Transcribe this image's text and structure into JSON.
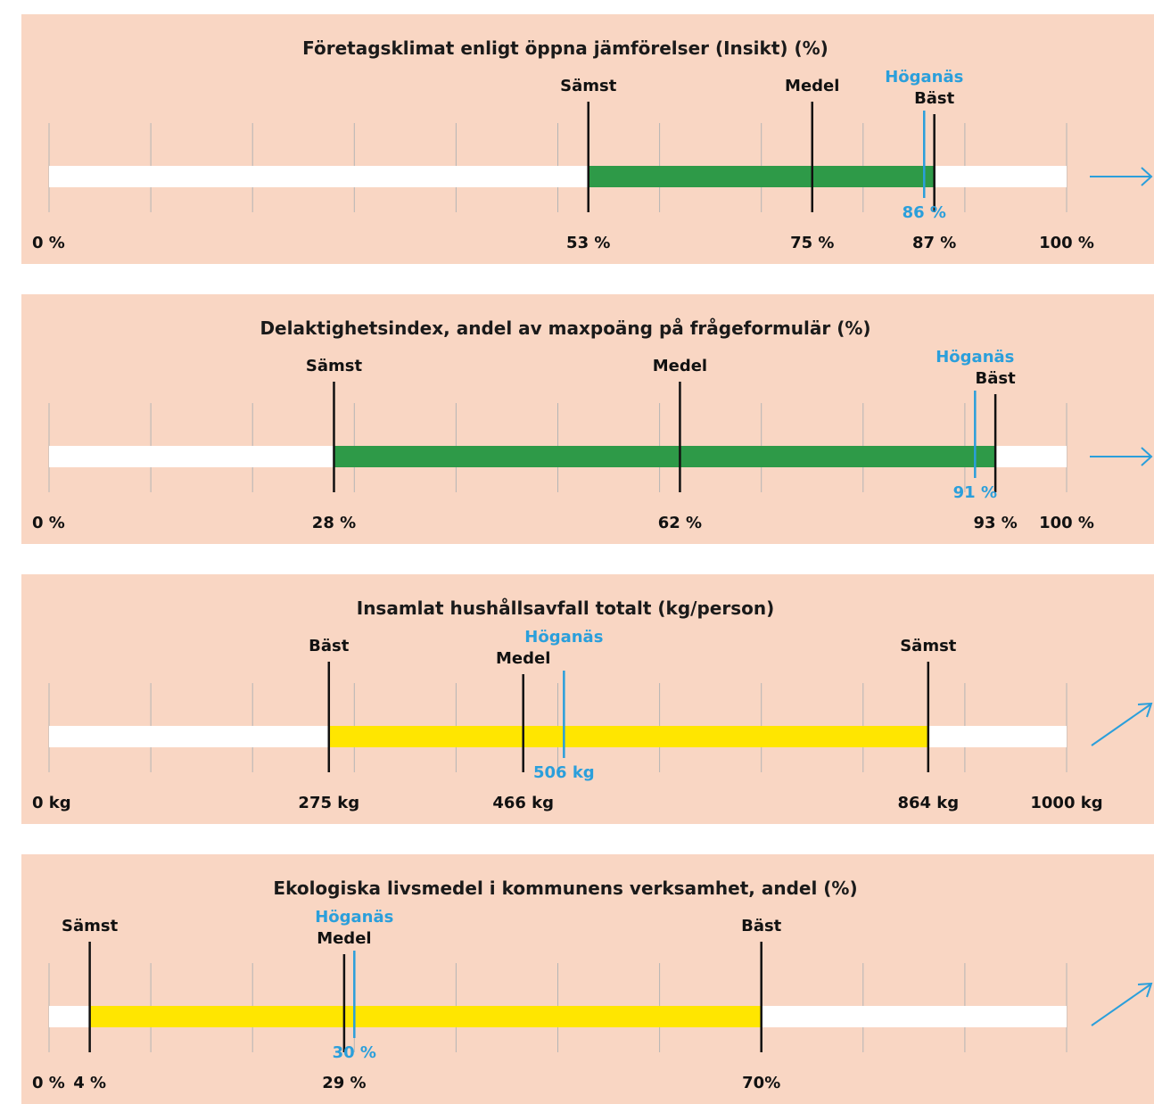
{
  "colors": {
    "panel_bg": "#f9d6c3",
    "track": "#ffffff",
    "green": "#2e9a48",
    "yellow": "#ffe600",
    "highlight": "#2b9fdb",
    "marker": "#111111",
    "gridline": "#b5b5b5"
  },
  "chart_data": [
    {
      "type": "range-bar",
      "title": "Företagsklimat enligt öppna jämförelser (Insikt) (%)",
      "xlim": [
        0,
        100
      ],
      "axis_labels": [
        "0 %",
        "100 %"
      ],
      "bar_color": "green",
      "trend": "right-arrow",
      "markers": [
        {
          "name": "Sämst",
          "value": 53,
          "label": "53 %"
        },
        {
          "name": "Medel",
          "value": 75,
          "label": "75 %"
        },
        {
          "name": "Bäst",
          "value": 87,
          "label": "87 %"
        }
      ],
      "highlight": {
        "name": "Höganäs",
        "value": 86,
        "label": "86 %"
      }
    },
    {
      "type": "range-bar",
      "title": "Delaktighetsindex, andel av maxpoäng på frågeformulär (%)",
      "xlim": [
        0,
        100
      ],
      "axis_labels": [
        "0 %",
        "100 %"
      ],
      "bar_color": "green",
      "trend": "right-arrow",
      "markers": [
        {
          "name": "Sämst",
          "value": 28,
          "label": "28 %"
        },
        {
          "name": "Medel",
          "value": 62,
          "label": "62 %"
        },
        {
          "name": "Bäst",
          "value": 93,
          "label": "93 %"
        }
      ],
      "highlight": {
        "name": "Höganäs",
        "value": 91,
        "label": "91 %"
      }
    },
    {
      "type": "range-bar",
      "title": "Insamlat hushållsavfall totalt (kg/person)",
      "xlim": [
        0,
        1000
      ],
      "axis_labels": [
        "0 kg",
        "1000 kg"
      ],
      "bar_color": "yellow",
      "trend": "up-right-arrow",
      "markers": [
        {
          "name": "Bäst",
          "value": 275,
          "label": "275 kg"
        },
        {
          "name": "Medel",
          "value": 466,
          "label": "466 kg"
        },
        {
          "name": "Sämst",
          "value": 864,
          "label": "864 kg"
        }
      ],
      "highlight": {
        "name": "Höganäs",
        "value": 506,
        "label": "506 kg"
      }
    },
    {
      "type": "range-bar",
      "title": "Ekologiska livsmedel i kommunens verksamhet, andel (%)",
      "xlim": [
        0,
        100
      ],
      "axis_labels": [
        "0 %",
        ""
      ],
      "bar_color": "yellow",
      "trend": "up-right-arrow",
      "markers": [
        {
          "name": "Sämst",
          "value": 4,
          "label": "4 %"
        },
        {
          "name": "Medel",
          "value": 29,
          "label": "29 %"
        },
        {
          "name": "Bäst",
          "value": 70,
          "label": "70%"
        }
      ],
      "highlight": {
        "name": "Höganäs",
        "value": 30,
        "label": "30 %"
      }
    }
  ]
}
